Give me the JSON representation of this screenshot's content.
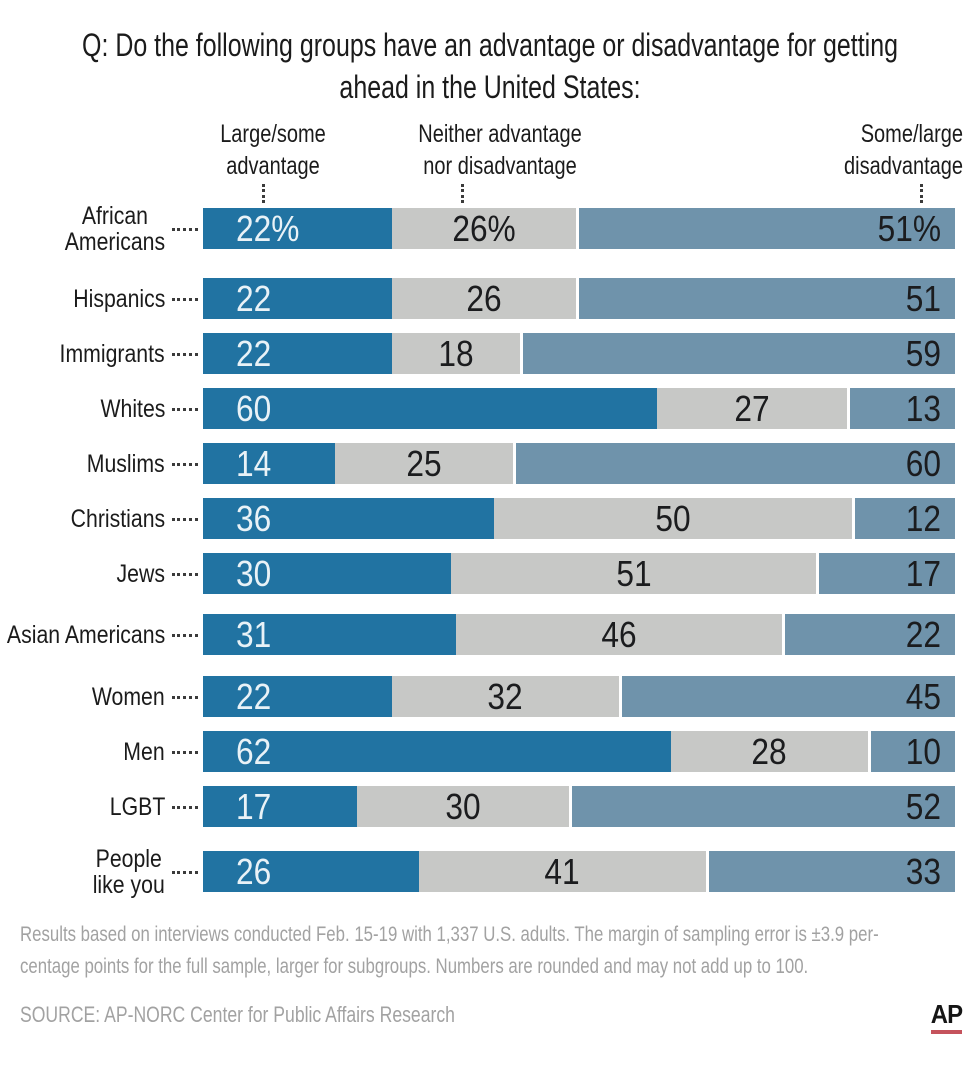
{
  "title": "Q: Do the following groups have an advantage or disadvantage for getting\nahead in the United States:",
  "column_headers": {
    "advantage": "Large/some\nadvantage",
    "neither": "Neither advantage\nnor disadvantage",
    "disadvantage": "Some/large\ndisadvantage"
  },
  "chart_data": {
    "type": "bar",
    "stacked": true,
    "orientation": "horizontal",
    "unit": "percent",
    "xlim": [
      0,
      100
    ],
    "title": "Q: Do the following groups have an advantage or disadvantage for getting ahead in the United States:",
    "categories": [
      "African Americans",
      "Hispanics",
      "Immigrants",
      "Whites",
      "Muslims",
      "Christians",
      "Jews",
      "Asian Americans",
      "Women",
      "Men",
      "LGBT",
      "People like you"
    ],
    "categories_display": [
      "African\nAmericans",
      "Hispanics",
      "Immigrants",
      "Whites",
      "Muslims",
      "Christians",
      "Jews",
      "Asian Americans",
      "Women",
      "Men",
      "LGBT",
      "People\nlike you"
    ],
    "series": [
      {
        "name": "Large/some advantage",
        "values": [
          22,
          22,
          22,
          60,
          14,
          36,
          30,
          31,
          22,
          62,
          17,
          26
        ]
      },
      {
        "name": "Neither advantage nor disadvantage",
        "values": [
          26,
          26,
          18,
          27,
          25,
          50,
          51,
          46,
          32,
          28,
          30,
          41
        ]
      },
      {
        "name": "Some/large disadvantage",
        "values": [
          51,
          51,
          59,
          13,
          60,
          12,
          17,
          22,
          45,
          10,
          52,
          33
        ]
      }
    ],
    "value_labels": [
      [
        "22%",
        "26%",
        "51%"
      ],
      [
        "22",
        "26",
        "51"
      ],
      [
        "22",
        "18",
        "59"
      ],
      [
        "60",
        "27",
        "13"
      ],
      [
        "14",
        "25",
        "60"
      ],
      [
        "36",
        "50",
        "12"
      ],
      [
        "30",
        "51",
        "17"
      ],
      [
        "31",
        "46",
        "22"
      ],
      [
        "22",
        "32",
        "45"
      ],
      [
        "62",
        "28",
        "10"
      ],
      [
        "17",
        "30",
        "52"
      ],
      [
        "26",
        "41",
        "33"
      ]
    ],
    "legend_position": "top"
  },
  "colors": {
    "advantage": "#2173a2",
    "neither": "#c7c8c6",
    "disadvantage": "#6f93ab",
    "value_on_advantage": "#e9f2f7",
    "value_on_light": "#1b1c1e",
    "muted_text": "#a2a2a2",
    "ap_red": "#c5535c"
  },
  "footnote": "Results based on interviews conducted Feb. 15-19 with 1,337 U.S. adults. The margin of sampling error is ±3.9 per-\ncentage points for the full sample, larger for subgroups. Numbers are rounded and may not add up to 100.",
  "source": "SOURCE: AP-NORC Center for Public Affairs Research",
  "ap_logo": "AP"
}
